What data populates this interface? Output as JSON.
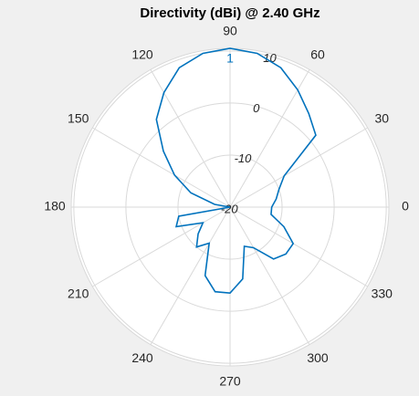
{
  "chart_data": {
    "type": "polar",
    "title": "Directivity (dBi) @ 2.40 GHz",
    "theta": [
      0,
      10,
      20,
      30,
      40,
      50,
      60,
      70,
      80,
      90,
      100,
      110,
      120,
      130,
      140,
      150,
      160,
      170,
      180,
      190,
      200,
      210,
      220,
      230,
      240,
      250,
      260,
      270,
      280,
      290,
      300,
      310,
      320,
      330,
      340,
      350
    ],
    "series": [
      {
        "name": "Directivity",
        "color": "#0072bd",
        "values": [
          -12,
          -11,
          -10,
          -8,
          1.5,
          3.5,
          6,
          8.5,
          10,
          10.5,
          10,
          8.5,
          5.4,
          2,
          -3.3,
          -7.7,
          -12,
          -17,
          -20,
          -10,
          -9,
          -14,
          -12,
          -10,
          -12,
          -6,
          -3.5,
          -3.5,
          -6,
          -12,
          -11,
          -7,
          -6,
          -6,
          -9,
          -12
        ]
      }
    ],
    "rlim": [
      -20,
      10.5
    ],
    "rticks": [
      -20,
      -10,
      0,
      10
    ],
    "thetaticks": [
      0,
      30,
      60,
      90,
      120,
      150,
      180,
      210,
      240,
      270,
      300,
      330
    ],
    "marker": {
      "label": "1",
      "theta": 90
    },
    "grid": true
  }
}
